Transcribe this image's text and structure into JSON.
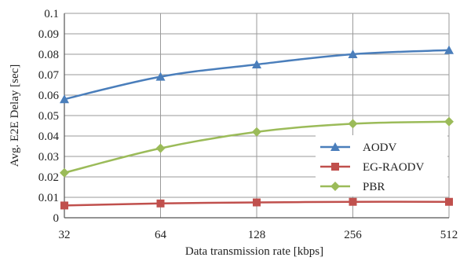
{
  "chart_data": {
    "type": "line",
    "title": "",
    "xlabel": "Data transmission rate [kbps]",
    "ylabel": "Avg. E2E Delay [sec]",
    "categories": [
      "32",
      "64",
      "128",
      "256",
      "512"
    ],
    "ylim": [
      0,
      0.1
    ],
    "yticks": [
      "0",
      "0.01",
      "0.02",
      "0.03",
      "0.04",
      "0.05",
      "0.06",
      "0.07",
      "0.08",
      "0.09",
      "0.1"
    ],
    "grid": true,
    "legend_position": "bottom-right",
    "series": [
      {
        "name": "AODV",
        "marker": "triangle",
        "color": "#4a7ebb",
        "values": [
          0.058,
          0.069,
          0.075,
          0.08,
          0.082
        ]
      },
      {
        "name": "EG-RAODV",
        "marker": "square",
        "color": "#c0504d",
        "values": [
          0.006,
          0.007,
          0.0075,
          0.0078,
          0.0078
        ]
      },
      {
        "name": "PBR",
        "marker": "diamond",
        "color": "#9bbb59",
        "values": [
          0.022,
          0.034,
          0.042,
          0.046,
          0.047
        ]
      }
    ]
  }
}
